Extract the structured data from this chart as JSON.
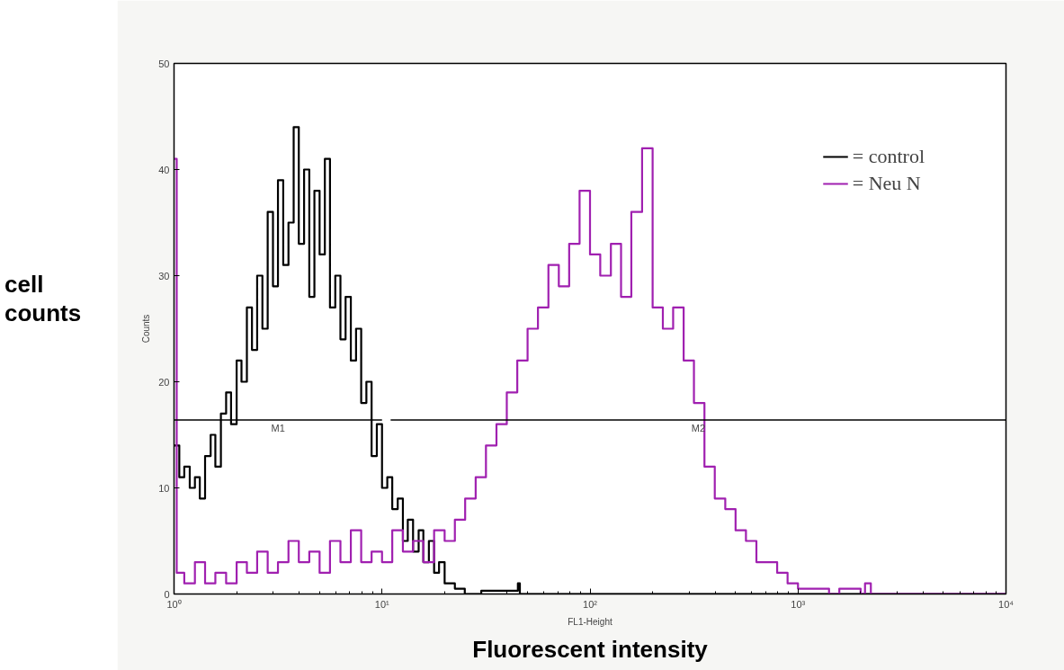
{
  "chart_data": {
    "type": "step",
    "xlabel": "FL1-Height",
    "ylabel": "Counts",
    "annotations": [
      "cell counts",
      "Fluorescent intensity"
    ],
    "log": "x",
    "xlim": [
      1,
      10000
    ],
    "ylim": [
      0,
      50
    ],
    "xticks": [
      {
        "value": 1,
        "label": "10⁰"
      },
      {
        "value": 10,
        "label": "10¹"
      },
      {
        "value": 100,
        "label": "10²"
      },
      {
        "value": 1000,
        "label": "10³"
      },
      {
        "value": 10000,
        "label": "10⁴"
      }
    ],
    "yticks": [
      0,
      10,
      20,
      30,
      40,
      50
    ],
    "grid": false,
    "legend": "top right",
    "series": [
      {
        "name": "= control",
        "color": "#000000",
        "x": [
          1,
          1.06,
          1.12,
          1.19,
          1.26,
          1.33,
          1.41,
          1.5,
          1.58,
          1.68,
          1.78,
          1.88,
          2,
          2.11,
          2.24,
          2.37,
          2.51,
          2.66,
          2.82,
          2.99,
          3.16,
          3.35,
          3.55,
          3.76,
          3.98,
          4.22,
          4.47,
          4.73,
          5.01,
          5.31,
          5.62,
          5.96,
          6.31,
          6.68,
          7.08,
          7.5,
          7.94,
          8.41,
          8.91,
          9.44,
          10,
          10.6,
          11.2,
          11.9,
          12.6,
          13.3,
          14.1,
          15,
          15.8,
          16.8,
          17.8,
          18.8,
          20,
          22.4,
          25,
          30,
          45,
          46,
          50,
          10000
        ],
        "values": [
          14,
          11,
          12,
          10,
          11,
          9,
          13,
          15,
          12,
          17,
          19,
          16,
          22,
          20,
          27,
          23,
          30,
          25,
          36,
          29,
          39,
          31,
          35,
          44,
          33,
          40,
          28,
          38,
          32,
          41,
          27,
          30,
          24,
          28,
          22,
          25,
          18,
          20,
          13,
          16,
          10,
          11,
          8,
          9,
          5,
          7,
          4,
          6,
          3,
          5,
          2,
          3,
          1,
          0.5,
          0,
          0.3,
          1,
          0,
          0,
          0
        ]
      },
      {
        "name": "= Neu N",
        "color": "#a020b0",
        "x": [
          1,
          1.03,
          1.12,
          1.26,
          1.41,
          1.58,
          1.78,
          2,
          2.24,
          2.51,
          2.82,
          3.16,
          3.55,
          3.98,
          4.47,
          5.01,
          5.62,
          6.31,
          7.08,
          7.94,
          8.91,
          10,
          11.2,
          12.6,
          14.1,
          15.8,
          17.8,
          20,
          22.4,
          25.1,
          28.2,
          31.6,
          35.5,
          39.8,
          44.7,
          50.1,
          56.2,
          63.1,
          70.8,
          79.4,
          89.1,
          100,
          112,
          126,
          141,
          158,
          178,
          200,
          224,
          251,
          282,
          316,
          355,
          398,
          447,
          501,
          562,
          631,
          708,
          794,
          891,
          1000,
          1260,
          1410,
          1580,
          2000,
          2100,
          2240,
          10000
        ],
        "values": [
          41,
          2,
          1,
          3,
          1,
          2,
          1,
          3,
          2,
          4,
          2,
          3,
          5,
          3,
          4,
          2,
          5,
          3,
          6,
          3,
          4,
          3,
          6,
          4,
          5,
          3,
          6,
          5,
          7,
          9,
          11,
          14,
          16,
          19,
          22,
          25,
          27,
          31,
          29,
          33,
          38,
          32,
          30,
          33,
          28,
          36,
          42,
          27,
          25,
          27,
          22,
          18,
          12,
          9,
          8,
          6,
          5,
          3,
          3,
          2,
          1,
          0.5,
          0.5,
          0,
          0.5,
          0,
          1,
          0,
          0
        ]
      },
      {
        "name": "M1",
        "type": "line",
        "color": "#000000",
        "x": [
          1,
          10
        ],
        "values": [
          16.4,
          16.4
        ]
      },
      {
        "name": "M2",
        "type": "line",
        "color": "#000000",
        "x": [
          11,
          10000
        ],
        "values": [
          16.4,
          16.4
        ]
      }
    ]
  }
}
